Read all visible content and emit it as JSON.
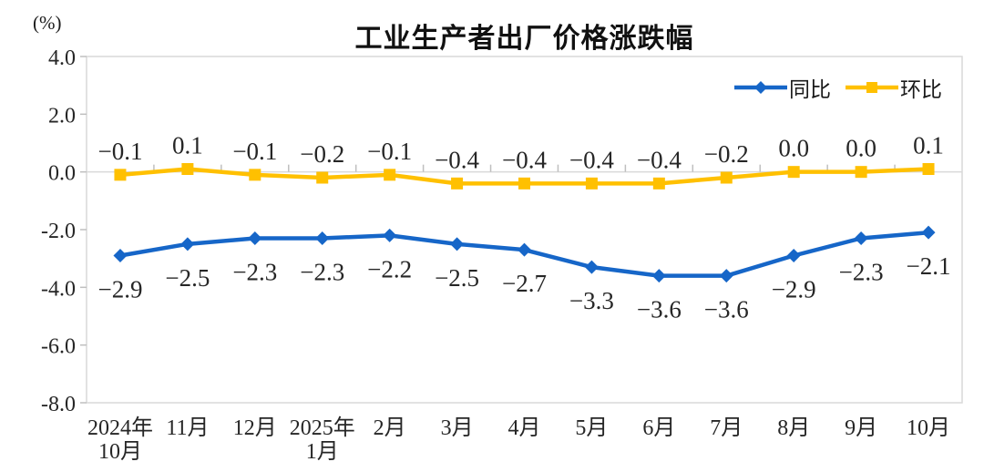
{
  "chart_data": {
    "type": "line",
    "title": "工业生产者出厂价格涨跌幅",
    "unit_label": "(%)",
    "categories": [
      [
        "2024年",
        "10月"
      ],
      [
        "11月"
      ],
      [
        "12月"
      ],
      [
        "2025年",
        "1月"
      ],
      [
        "2月"
      ],
      [
        "3月"
      ],
      [
        "4月"
      ],
      [
        "5月"
      ],
      [
        "6月"
      ],
      [
        "7月"
      ],
      [
        "8月"
      ],
      [
        "9月"
      ],
      [
        "10月"
      ]
    ],
    "series": [
      {
        "name": "同比",
        "color": "#1666c8",
        "marker": "diamond",
        "label_position": "below",
        "values": [
          -2.9,
          -2.5,
          -2.3,
          -2.3,
          -2.2,
          -2.5,
          -2.7,
          -3.3,
          -3.6,
          -3.6,
          -2.9,
          -2.3,
          -2.1
        ],
        "labels": [
          "−2.9",
          "−2.5",
          "−2.3",
          "−2.3",
          "−2.2",
          "−2.5",
          "−2.7",
          "−3.3",
          "−3.6",
          "−3.6",
          "−2.9",
          "−2.3",
          "−2.1"
        ]
      },
      {
        "name": "环比",
        "color": "#ffc000",
        "marker": "square",
        "label_position": "above",
        "values": [
          -0.1,
          0.1,
          -0.1,
          -0.2,
          -0.1,
          -0.4,
          -0.4,
          -0.4,
          -0.4,
          -0.2,
          0.0,
          0.0,
          0.1
        ],
        "labels": [
          "−0.1",
          "0.1",
          "−0.1",
          "−0.2",
          "−0.1",
          "−0.4",
          "−0.4",
          "−0.4",
          "−0.4",
          "−0.2",
          "0.0",
          "0.0",
          "0.1"
        ]
      }
    ],
    "ylim": [
      -8.0,
      4.0
    ],
    "yticks": [
      {
        "value": 4.0,
        "label": "4.0"
      },
      {
        "value": 2.0,
        "label": "2.0"
      },
      {
        "value": 0.0,
        "label": "0.0"
      },
      {
        "value": -2.0,
        "label": "-2.0"
      },
      {
        "value": -4.0,
        "label": "-4.0"
      },
      {
        "value": -6.0,
        "label": "-6.0"
      },
      {
        "value": -8.0,
        "label": "-8.0"
      }
    ],
    "grid": "zero-line-only",
    "legend_position": "top-right",
    "axis_color": "#d9d9d9",
    "tick_color": "#bfbfbf",
    "text_color": "#262626"
  }
}
